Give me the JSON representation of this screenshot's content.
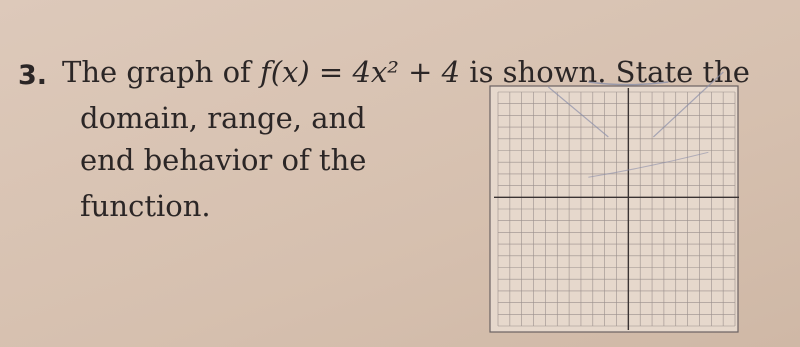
{
  "problem": {
    "number": "3.",
    "intro": "The graph of",
    "formula": "f(x) = 4x² + 4",
    "rest": "is shown. State the",
    "lines": [
      "domain, range, and",
      "end behavior of the",
      "function."
    ]
  }
}
